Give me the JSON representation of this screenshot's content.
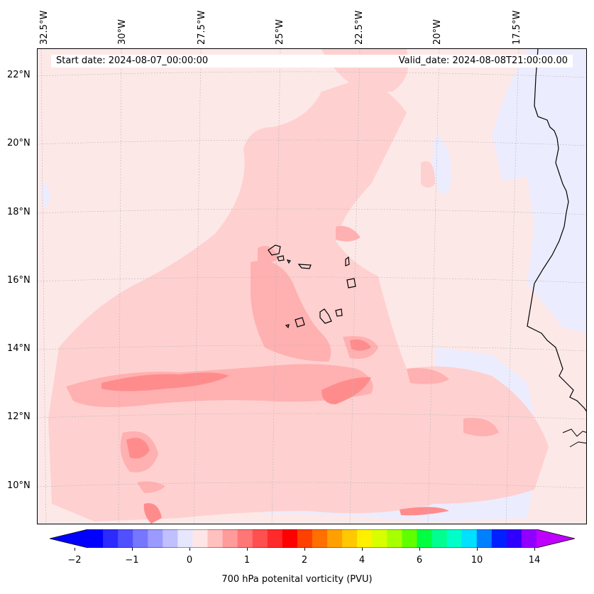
{
  "header": {
    "start_date": "Start date: 2024-08-07_00:00:00",
    "valid_date": "Valid_date: 2024-08-08T21:00:00.00"
  },
  "axes": {
    "longitude_labels": [
      "32.5°W",
      "30°W",
      "27.5°W",
      "25°W",
      "22.5°W",
      "20°W",
      "17.5°W"
    ],
    "latitude_labels": [
      "22°N",
      "20°N",
      "18°N",
      "16°N",
      "14°N",
      "12°N",
      "10°N"
    ]
  },
  "colorbar": {
    "label": "700 hPa potenital vorticity (PVU)",
    "tick_labels": [
      "−2",
      "−1",
      "0",
      "1",
      "2",
      "4",
      "6",
      "10",
      "14"
    ],
    "colors": [
      "#0000ff",
      "#2b2bff",
      "#5050ff",
      "#7676ff",
      "#9b9bff",
      "#c0c0ff",
      "#e6e6ff",
      "#ffe6e6",
      "#ffc0c0",
      "#ff9b9b",
      "#ff7676",
      "#ff5050",
      "#ff2b2b",
      "#ff0000",
      "#ff4000",
      "#ff7000",
      "#ffa000",
      "#ffc800",
      "#fff000",
      "#d8ff00",
      "#a8ff00",
      "#60ff00",
      "#00ff40",
      "#00ff90",
      "#00ffc8",
      "#00e0ff",
      "#0080ff",
      "#0020ff",
      "#3000ff",
      "#9000ff"
    ],
    "extend_min_color": "#0000ff",
    "extend_max_color": "#c000ff"
  },
  "map": {
    "background_color": "#fde8e8",
    "positive_light": "#ffd0d0",
    "positive_mid": "#ffb0b0",
    "positive_strong": "#ff8c8c",
    "negative_light": "#ececff",
    "negative_mid": "#c8c8ff",
    "negative_strong": "#9a9aff",
    "land_color": "#ececff"
  }
}
